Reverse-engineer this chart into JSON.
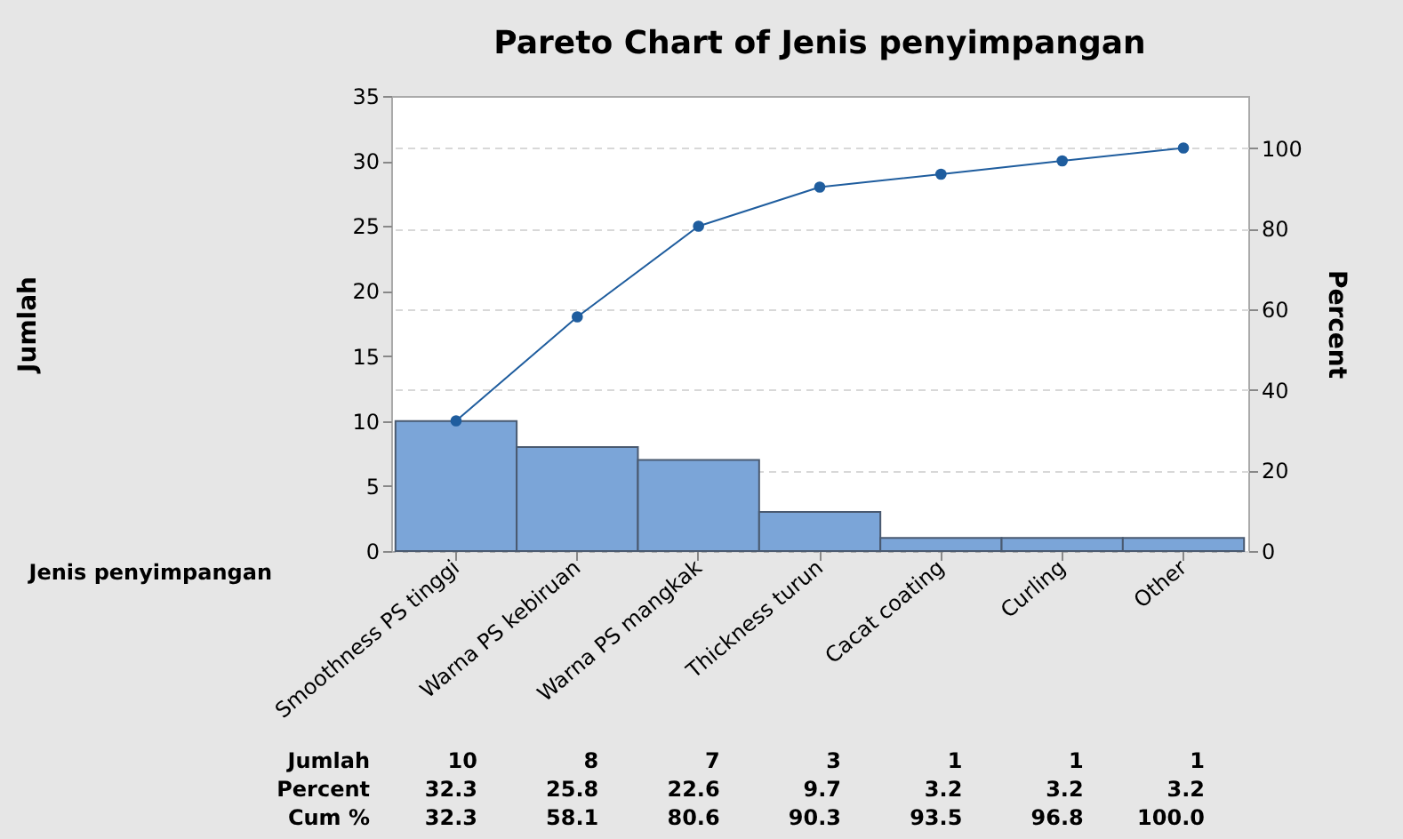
{
  "chart_data": {
    "type": "bar",
    "title": "Pareto Chart of Jenis penyimpangan",
    "xlabel": "Jenis penyimpangan",
    "ylabel": "Jumlah",
    "y2label": "Percent",
    "categories": [
      "Smoothness PS tinggi",
      "Warna PS kebiruan",
      "Warna PS mangkak",
      "Thickness turun",
      "Cacat coating",
      "Curling",
      "Other"
    ],
    "ylim": [
      0,
      35
    ],
    "yticks": [
      0,
      5,
      10,
      15,
      20,
      25,
      30,
      35
    ],
    "y2lim": [
      0,
      112.9
    ],
    "y2ticks": [
      0,
      20,
      40,
      60,
      80,
      100
    ],
    "grid": "y2",
    "marker": "circle",
    "line_style": "solid",
    "series": [
      {
        "color": "#7ba5d8",
        "values": [
          10,
          8,
          7,
          3,
          1,
          1,
          1
        ],
        "value_labels": [
          "10",
          "8",
          "7",
          "3",
          "1",
          "1",
          "1"
        ]
      },
      {
        "type": "line",
        "axis": "y2",
        "color": "#1f5d9e",
        "values": [
          32.3,
          58.1,
          80.6,
          90.3,
          93.5,
          96.8,
          100.0
        ]
      }
    ],
    "annotations": [
      "Cum %",
      "32.3",
      "25.8",
      "22.6",
      "9.7",
      "3.2",
      "3.2",
      "3.2",
      "32.3",
      "58.1",
      "80.6",
      "90.3",
      "93.5",
      "96.8",
      "100.0"
    ]
  }
}
